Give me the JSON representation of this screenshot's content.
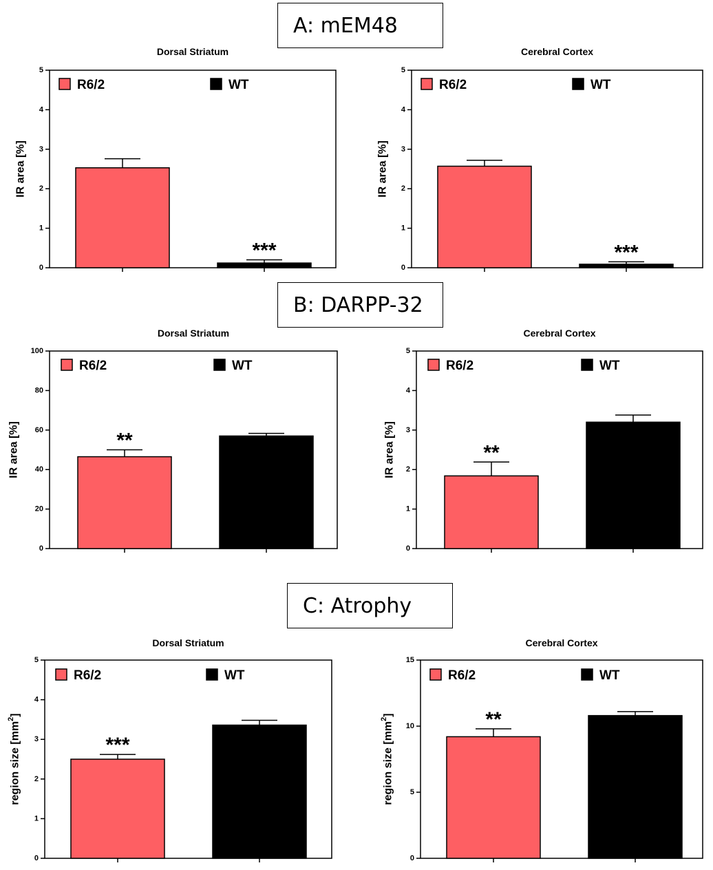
{
  "sections": [
    {
      "label": "A: mEM48"
    },
    {
      "label": "B: DARPP-32"
    },
    {
      "label": "C: Atrophy"
    }
  ],
  "colors": {
    "r62": "#fe5f63",
    "wt": "#000000"
  },
  "chart_data": [
    {
      "type": "bar",
      "title": "Dorsal Striatum",
      "ylabel": "IR area [%]",
      "ylim": [
        0,
        5
      ],
      "yticks": [
        "0",
        "1",
        "2",
        "3",
        "4",
        "5"
      ],
      "legend": [
        "R6/2",
        "WT"
      ],
      "legend_placement": "top",
      "series": [
        {
          "name": "R6/2",
          "value": 2.53,
          "error": 0.23,
          "significance": ""
        },
        {
          "name": "WT",
          "value": 0.12,
          "error": 0.08,
          "significance": "***"
        }
      ]
    },
    {
      "type": "bar",
      "title": "Cerebral Cortex",
      "ylabel": "IR area [%]",
      "ylim": [
        0,
        5
      ],
      "yticks": [
        "0",
        "1",
        "2",
        "3",
        "4",
        "5"
      ],
      "legend": [
        "R6/2",
        "WT"
      ],
      "legend_placement": "top",
      "series": [
        {
          "name": "R6/2",
          "value": 2.57,
          "error": 0.15,
          "significance": ""
        },
        {
          "name": "WT",
          "value": 0.09,
          "error": 0.06,
          "significance": "***"
        }
      ]
    },
    {
      "type": "bar",
      "title": "Dorsal Striatum",
      "ylabel": "IR area [%]",
      "ylim": [
        0,
        100
      ],
      "yticks": [
        "0",
        "20",
        "40",
        "60",
        "80",
        "100"
      ],
      "legend": [
        "R6/2",
        "WT"
      ],
      "legend_placement": "top",
      "series": [
        {
          "name": "R6/2",
          "value": 46.5,
          "error": 3.5,
          "significance": "**"
        },
        {
          "name": "WT",
          "value": 57.0,
          "error": 1.3,
          "significance": ""
        }
      ]
    },
    {
      "type": "bar",
      "title": "Cerebral Cortex",
      "ylabel": "IR area [%]",
      "ylim": [
        0,
        5
      ],
      "yticks": [
        "0",
        "1",
        "2",
        "3",
        "4",
        "5"
      ],
      "legend": [
        "R6/2",
        "WT"
      ],
      "legend_placement": "top",
      "series": [
        {
          "name": "R6/2",
          "value": 1.84,
          "error": 0.35,
          "significance": "**"
        },
        {
          "name": "WT",
          "value": 3.2,
          "error": 0.18,
          "significance": ""
        }
      ]
    },
    {
      "type": "bar",
      "title": "Dorsal Striatum",
      "ylabel": "region size [mm2]",
      "ylim": [
        0,
        5
      ],
      "yticks": [
        "0",
        "1",
        "2",
        "3",
        "4",
        "5"
      ],
      "legend": [
        "R6/2",
        "WT"
      ],
      "legend_placement": "top",
      "series": [
        {
          "name": "R6/2",
          "value": 2.5,
          "error": 0.12,
          "significance": "***"
        },
        {
          "name": "WT",
          "value": 3.36,
          "error": 0.12,
          "significance": ""
        }
      ]
    },
    {
      "type": "bar",
      "title": "Cerebral Cortex",
      "ylabel": "region size [mm2]",
      "ylim": [
        0,
        15
      ],
      "yticks": [
        "0",
        "5",
        "10",
        "15"
      ],
      "legend": [
        "R6/2",
        "WT"
      ],
      "legend_placement": "top",
      "series": [
        {
          "name": "R6/2",
          "value": 9.2,
          "error": 0.6,
          "significance": "**"
        },
        {
          "name": "WT",
          "value": 10.8,
          "error": 0.3,
          "significance": ""
        }
      ]
    }
  ]
}
